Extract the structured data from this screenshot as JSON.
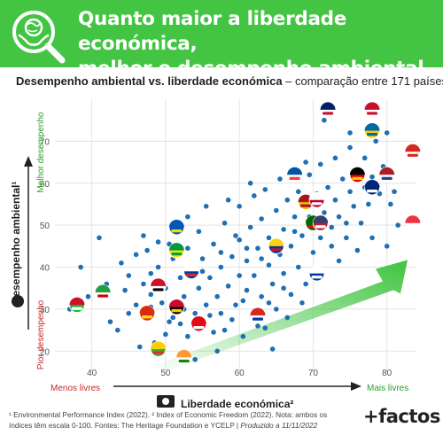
{
  "header": {
    "title_line1": "Quanto maior a liberdade económica,",
    "title_line2": "melhor o desempenho ambiental",
    "icon": "globe-magnifier-hands-icon"
  },
  "subtitle": {
    "bold": "Desempenho ambiental vs. liberdade económica",
    "rest": " – comparação entre 171 países"
  },
  "footer": {
    "line1": "¹ Environmental Performance Index (2022). ² Index of Economic Freedom (2022). Nota: ambos os",
    "line2": "índices têm escala 0-100. Fontes: The Heritage Foundation e YCELP | ",
    "line2_italic": "Produzido a 11/11/2022",
    "brand": "+factos"
  },
  "colors": {
    "banner": "#43c443",
    "point": "#1f6fb4",
    "good": "#2e9e2e",
    "bad": "#c62828",
    "arrow": "#3fc43f"
  },
  "chart_data": {
    "type": "scatter",
    "title": "Desempenho ambiental vs. liberdade económica",
    "xlabel": "Liberdade económica²",
    "ylabel": "Desempenho ambiental¹",
    "x_low_label": "Menos livres",
    "x_high_label": "Mais livres",
    "y_low_label": "Pior desempenho",
    "y_high_label": "Melhor desempenho",
    "xlim": [
      35,
      84
    ],
    "ylim": [
      15,
      80
    ],
    "x_ticks": [
      40,
      50,
      60,
      70,
      80
    ],
    "y_ticks": [
      20,
      30,
      40,
      50,
      60,
      70
    ],
    "grid": true,
    "points": [
      [
        37.0,
        30.0
      ],
      [
        38.5,
        40.0
      ],
      [
        41.0,
        47.0
      ],
      [
        42.5,
        27.0
      ],
      [
        43.5,
        25.0
      ],
      [
        44.5,
        34.5
      ],
      [
        45.0,
        38.0
      ],
      [
        46.0,
        43.0
      ],
      [
        46.5,
        21.0
      ],
      [
        47.0,
        36.0
      ],
      [
        47.5,
        28.0
      ],
      [
        47.5,
        44.0
      ],
      [
        48.0,
        30.5
      ],
      [
        48.0,
        38.5
      ],
      [
        48.5,
        22.0
      ],
      [
        49.0,
        40.0
      ],
      [
        49.5,
        31.5
      ],
      [
        50.0,
        24.0
      ],
      [
        50.0,
        35.0
      ],
      [
        50.5,
        45.5
      ],
      [
        51.0,
        28.0
      ],
      [
        51.0,
        42.0
      ],
      [
        51.5,
        31.0
      ],
      [
        52.0,
        26.5
      ],
      [
        52.0,
        37.5
      ],
      [
        52.5,
        33.0
      ],
      [
        53.0,
        23.5
      ],
      [
        53.0,
        44.5
      ],
      [
        53.5,
        40.0
      ],
      [
        54.0,
        29.0
      ],
      [
        54.5,
        35.0
      ],
      [
        54.5,
        48.5
      ],
      [
        55.0,
        26.0
      ],
      [
        55.0,
        42.0
      ],
      [
        55.5,
        31.0
      ],
      [
        56.0,
        37.5
      ],
      [
        56.5,
        24.5
      ],
      [
        56.5,
        45.5
      ],
      [
        57.0,
        33.0
      ],
      [
        57.5,
        29.0
      ],
      [
        57.5,
        40.0
      ],
      [
        58.0,
        50.5
      ],
      [
        58.5,
        35.5
      ],
      [
        59.0,
        27.5
      ],
      [
        59.0,
        42.5
      ],
      [
        59.5,
        31.0
      ],
      [
        60.0,
        38.0
      ],
      [
        60.0,
        46.5
      ],
      [
        60.0,
        54.5
      ],
      [
        60.5,
        23.5
      ],
      [
        61.0,
        34.5
      ],
      [
        61.0,
        41.5
      ],
      [
        61.5,
        49.5
      ],
      [
        62.0,
        29.5
      ],
      [
        62.0,
        38.0
      ],
      [
        62.5,
        44.5
      ],
      [
        63.0,
        33.0
      ],
      [
        63.0,
        51.5
      ],
      [
        63.5,
        25.5
      ],
      [
        64.0,
        40.5
      ],
      [
        64.0,
        47.0
      ],
      [
        64.5,
        36.0
      ],
      [
        65.0,
        30.0
      ],
      [
        65.0,
        53.5
      ],
      [
        65.5,
        43.0
      ],
      [
        66.0,
        38.5
      ],
      [
        66.0,
        49.0
      ],
      [
        66.5,
        56.0
      ],
      [
        67.0,
        33.5
      ],
      [
        67.0,
        45.0
      ],
      [
        67.5,
        52.0
      ],
      [
        68.0,
        40.0
      ],
      [
        68.0,
        58.0
      ],
      [
        68.5,
        47.5
      ],
      [
        69.0,
        36.0
      ],
      [
        69.0,
        55.0
      ],
      [
        69.5,
        62.0
      ],
      [
        70.0,
        43.5
      ],
      [
        70.0,
        50.0
      ],
      [
        70.5,
        57.5
      ],
      [
        71.0,
        47.0
      ],
      [
        71.0,
        64.5
      ],
      [
        71.5,
        53.0
      ],
      [
        72.0,
        59.0
      ],
      [
        72.5,
        49.5
      ],
      [
        73.0,
        56.0
      ],
      [
        73.0,
        66.0
      ],
      [
        73.5,
        52.0
      ],
      [
        74.0,
        61.0
      ],
      [
        74.5,
        47.0
      ],
      [
        75.0,
        58.0
      ],
      [
        75.0,
        68.5
      ],
      [
        75.5,
        54.5
      ],
      [
        76.0,
        63.0
      ],
      [
        76.5,
        50.5
      ],
      [
        77.0,
        66.0
      ],
      [
        77.0,
        59.0
      ],
      [
        77.5,
        55.0
      ],
      [
        78.0,
        61.5
      ],
      [
        78.5,
        70.0
      ],
      [
        79.0,
        57.5
      ],
      [
        79.5,
        64.0
      ],
      [
        80.0,
        72.0
      ],
      [
        80.5,
        55.0
      ],
      [
        81.0,
        58.0
      ],
      [
        81.5,
        50.0
      ],
      [
        80.0,
        45.0
      ],
      [
        75.0,
        72.0
      ],
      [
        71.5,
        75.0
      ],
      [
        69.0,
        65.0
      ],
      [
        62.0,
        57.0
      ],
      [
        57.0,
        20.0
      ],
      [
        54.0,
        18.0
      ],
      [
        64.5,
        20.5
      ],
      [
        66.5,
        28.0
      ],
      [
        68.5,
        31.5
      ],
      [
        70.5,
        38.5
      ],
      [
        73.5,
        41.5
      ],
      [
        76.0,
        44.0
      ],
      [
        78.0,
        47.0
      ],
      [
        44.0,
        41.0
      ],
      [
        42.0,
        36.0
      ],
      [
        39.5,
        33.0
      ],
      [
        47.0,
        47.5
      ],
      [
        49.0,
        46.0
      ],
      [
        51.5,
        49.5
      ],
      [
        53.0,
        52.0
      ],
      [
        55.5,
        54.5
      ],
      [
        58.5,
        56.0
      ],
      [
        61.5,
        60.0
      ],
      [
        63.5,
        58.5
      ],
      [
        65.5,
        61.0
      ],
      [
        67.5,
        63.0
      ],
      [
        60.5,
        32.0
      ],
      [
        58.0,
        25.0
      ],
      [
        56.0,
        28.5
      ],
      [
        62.5,
        26.0
      ],
      [
        64.0,
        31.5
      ],
      [
        66.0,
        35.0
      ],
      [
        55.0,
        39.0
      ],
      [
        52.5,
        30.0
      ],
      [
        50.5,
        27.0
      ],
      [
        48.0,
        33.5
      ],
      [
        46.0,
        31.0
      ],
      [
        45.0,
        29.0
      ],
      [
        57.5,
        43.5
      ],
      [
        59.5,
        47.5
      ],
      [
        61.0,
        44.5
      ],
      [
        63.0,
        42.0
      ],
      [
        65.0,
        46.0
      ],
      [
        67.5,
        48.5
      ],
      [
        69.5,
        52.0
      ],
      [
        72.5,
        45.0
      ],
      [
        74.5,
        50.5
      ]
    ],
    "flags": [
      {
        "name": "Reino Unido",
        "x": 72.0,
        "y": 77.5
      },
      {
        "name": "Dinamarca",
        "x": 78.0,
        "y": 77.5
      },
      {
        "name": "Suécia",
        "x": 78.0,
        "y": 72.5
      },
      {
        "name": "Suíça",
        "x": 83.5,
        "y": 67.5
      },
      {
        "name": "França",
        "x": 67.5,
        "y": 62.0
      },
      {
        "name": "Alemanha",
        "x": 76.0,
        "y": 62.0
      },
      {
        "name": "Países Baixos",
        "x": 80.0,
        "y": 62.0
      },
      {
        "name": "Austrália",
        "x": 78.0,
        "y": 59.0
      },
      {
        "name": "Espanha",
        "x": 69.0,
        "y": 55.5
      },
      {
        "name": "Japão",
        "x": 70.5,
        "y": 56.0
      },
      {
        "name": "Portugal",
        "x": 70.0,
        "y": 50.5
      },
      {
        "name": "EUA",
        "x": 71.0,
        "y": 50.5
      },
      {
        "name": "Singapura",
        "x": 83.5,
        "y": 50.5
      },
      {
        "name": "Ucrânia",
        "x": 51.5,
        "y": 49.5
      },
      {
        "name": "Colômbia",
        "x": 65.0,
        "y": 45.0
      },
      {
        "name": "Brasil",
        "x": 51.5,
        "y": 44.0
      },
      {
        "name": "Rússia",
        "x": 53.5,
        "y": 39.0
      },
      {
        "name": "Uruguai",
        "x": 70.5,
        "y": 38.5
      },
      {
        "name": "Egito",
        "x": 49.0,
        "y": 35.5
      },
      {
        "name": "Irão",
        "x": 41.5,
        "y": 34.0
      },
      {
        "name": "Burundi",
        "x": 38.0,
        "y": 31.0
      },
      {
        "name": "Angola",
        "x": 51.5,
        "y": 30.5
      },
      {
        "name": "China",
        "x": 47.5,
        "y": 29.0
      },
      {
        "name": "Paraguai",
        "x": 62.5,
        "y": 28.5
      },
      {
        "name": "Turquia",
        "x": 54.5,
        "y": 26.5
      },
      {
        "name": "Myanmar",
        "x": 49.0,
        "y": 20.5
      },
      {
        "name": "Índia",
        "x": 52.5,
        "y": 18.5
      }
    ]
  }
}
